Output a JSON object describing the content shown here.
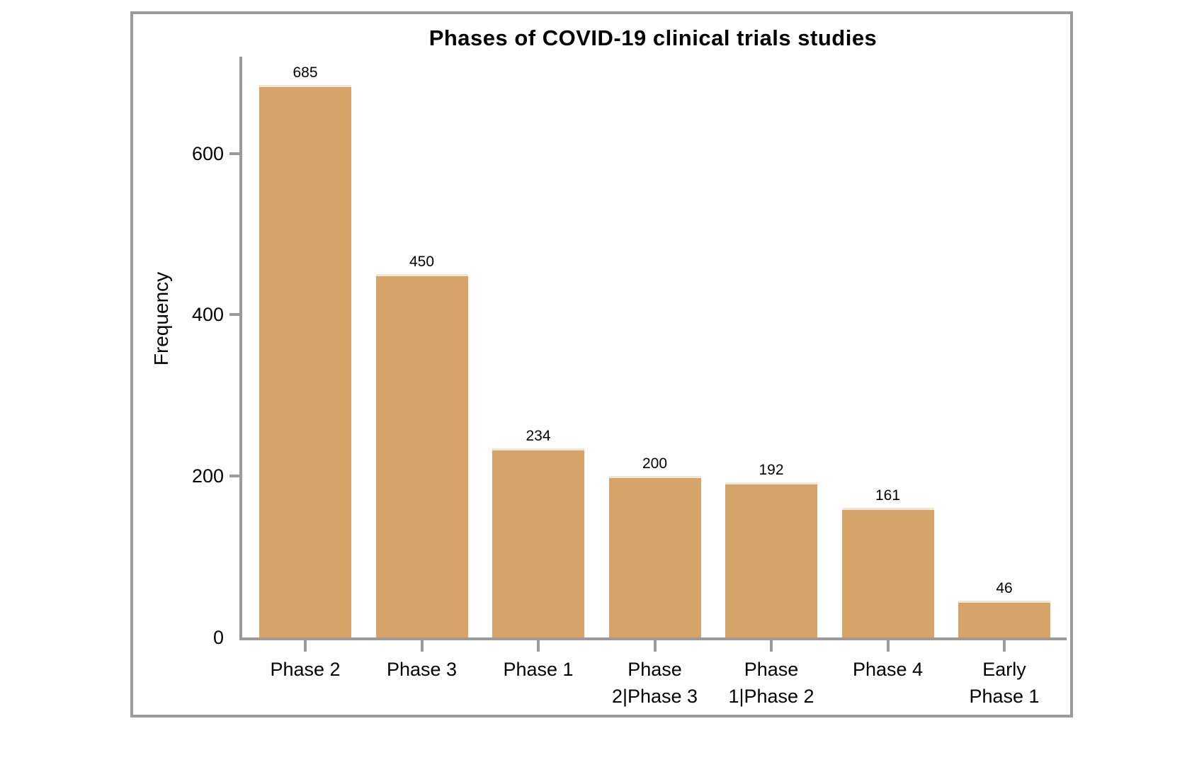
{
  "chart_data": {
    "type": "bar",
    "title": "Phases of COVID-19 clinical trials studies",
    "xlabel": "",
    "ylabel": "Frequency",
    "categories": [
      "Phase 2",
      "Phase 3",
      "Phase 1",
      "Phase 2|Phase 3",
      "Phase 1|Phase 2",
      "Phase 4",
      "Early Phase 1"
    ],
    "category_label_lines": [
      [
        "Phase 2"
      ],
      [
        "Phase 3"
      ],
      [
        "Phase 1"
      ],
      [
        "Phase",
        "2|Phase 3"
      ],
      [
        "Phase",
        "1|Phase 2"
      ],
      [
        "Phase 4"
      ],
      [
        "Early",
        "Phase 1"
      ]
    ],
    "values": [
      685,
      450,
      234,
      200,
      192,
      161,
      46
    ],
    "yticks": [
      0,
      200,
      400,
      600
    ],
    "ylim": [
      0,
      720
    ],
    "grid": false,
    "legend": "none",
    "bar_color": "#d6a368",
    "bar_top_highlight": "#f3e7cf",
    "axis_color": "#9b9b9b",
    "frame_color": "#9b9b9b",
    "text_color": "#000000",
    "background_color": "#ffffff"
  }
}
